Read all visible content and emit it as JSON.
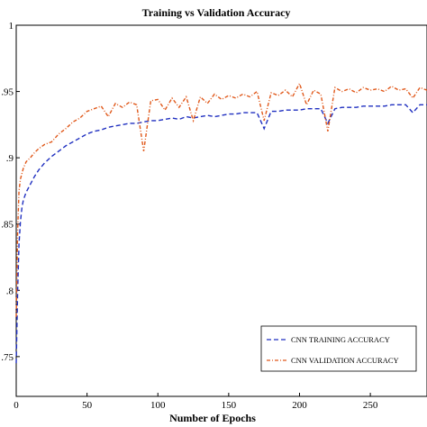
{
  "chart_data": {
    "type": "line",
    "title": "Training vs Validation Accuracy",
    "xlabel": "Number of Epochs",
    "ylabel": "",
    "xlim": [
      0,
      290
    ],
    "ylim": [
      0.72,
      1.0
    ],
    "x_ticks": [
      0,
      50,
      100,
      150,
      200,
      250
    ],
    "x_tick_labels": [
      "0",
      "50",
      "100",
      "150",
      "200",
      "250"
    ],
    "y_ticks": [
      0.75,
      0.8,
      0.85,
      0.9,
      0.95,
      1.0
    ],
    "y_tick_labels": [
      ".75",
      ".8",
      ".85",
      ".9",
      ".95",
      "1"
    ],
    "grid": false,
    "legend_position": "bottom-right",
    "series": [
      {
        "name": "CNN TRAINING ACCURACY",
        "color": "#1f2fc0",
        "style": "dashed",
        "x": [
          0,
          1,
          2,
          3,
          4,
          5,
          7,
          10,
          13,
          16,
          20,
          25,
          30,
          35,
          40,
          45,
          50,
          55,
          60,
          65,
          70,
          75,
          80,
          85,
          90,
          95,
          100,
          105,
          110,
          115,
          120,
          125,
          130,
          135,
          140,
          145,
          150,
          155,
          160,
          165,
          170,
          175,
          180,
          185,
          190,
          195,
          200,
          205,
          210,
          215,
          220,
          225,
          230,
          235,
          240,
          245,
          250,
          255,
          260,
          265,
          270,
          275,
          280,
          285,
          290
        ],
        "y": [
          0.745,
          0.8,
          0.835,
          0.852,
          0.862,
          0.868,
          0.874,
          0.88,
          0.886,
          0.891,
          0.896,
          0.901,
          0.905,
          0.909,
          0.912,
          0.915,
          0.918,
          0.92,
          0.921,
          0.923,
          0.924,
          0.925,
          0.926,
          0.926,
          0.927,
          0.928,
          0.928,
          0.929,
          0.93,
          0.929,
          0.931,
          0.93,
          0.931,
          0.932,
          0.931,
          0.932,
          0.933,
          0.933,
          0.934,
          0.934,
          0.934,
          0.922,
          0.935,
          0.935,
          0.936,
          0.936,
          0.936,
          0.937,
          0.937,
          0.937,
          0.926,
          0.937,
          0.938,
          0.938,
          0.938,
          0.939,
          0.939,
          0.939,
          0.939,
          0.94,
          0.94,
          0.94,
          0.934,
          0.94,
          0.94
        ]
      },
      {
        "name": "CNN VALIDATION ACCURACY",
        "color": "#e0581a",
        "style": "dash-dot",
        "x": [
          0,
          1,
          2,
          3,
          4,
          5,
          7,
          10,
          13,
          16,
          20,
          25,
          30,
          35,
          40,
          45,
          50,
          55,
          60,
          65,
          70,
          75,
          80,
          85,
          90,
          95,
          100,
          105,
          110,
          115,
          120,
          125,
          130,
          135,
          140,
          145,
          150,
          155,
          160,
          165,
          170,
          175,
          180,
          185,
          190,
          195,
          200,
          205,
          210,
          215,
          220,
          225,
          230,
          235,
          240,
          245,
          250,
          255,
          260,
          265,
          270,
          275,
          280,
          285,
          290
        ],
        "y": [
          0.78,
          0.845,
          0.875,
          0.884,
          0.888,
          0.892,
          0.897,
          0.9,
          0.904,
          0.907,
          0.91,
          0.912,
          0.918,
          0.922,
          0.927,
          0.93,
          0.935,
          0.937,
          0.939,
          0.931,
          0.941,
          0.938,
          0.942,
          0.94,
          0.905,
          0.943,
          0.944,
          0.936,
          0.945,
          0.938,
          0.946,
          0.928,
          0.946,
          0.941,
          0.948,
          0.944,
          0.947,
          0.945,
          0.948,
          0.946,
          0.95,
          0.928,
          0.949,
          0.947,
          0.951,
          0.946,
          0.956,
          0.94,
          0.951,
          0.948,
          0.92,
          0.953,
          0.95,
          0.952,
          0.949,
          0.953,
          0.951,
          0.952,
          0.95,
          0.954,
          0.951,
          0.952,
          0.945,
          0.953,
          0.951
        ]
      }
    ]
  }
}
